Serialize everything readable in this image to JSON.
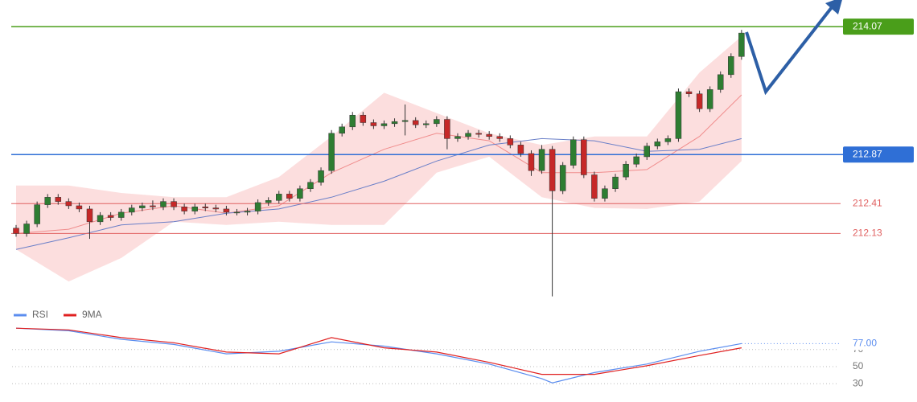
{
  "chart_data": [
    {
      "type": "candlestick",
      "open": [
        212.18,
        212.13,
        212.22,
        212.4,
        212.47,
        212.43,
        212.39,
        212.36,
        212.24,
        212.3,
        212.28,
        212.33,
        212.37,
        212.39,
        212.38,
        212.43,
        212.38,
        212.34,
        212.38,
        212.37,
        212.36,
        212.33,
        212.33,
        212.34,
        212.42,
        212.44,
        212.5,
        212.46,
        212.55,
        212.61,
        212.72,
        213.07,
        213.13,
        213.24,
        213.17,
        213.14,
        213.16,
        213.18,
        213.19,
        213.15,
        213.16,
        213.2,
        213.02,
        213.04,
        213.07,
        213.06,
        213.04,
        213.02,
        212.96,
        212.88,
        212.72,
        212.92,
        212.53,
        212.77,
        213.01,
        212.68,
        212.46,
        212.55,
        212.66,
        212.78,
        212.85,
        212.95,
        212.99,
        213.02,
        213.46,
        213.44,
        213.3,
        213.48,
        213.62,
        213.79
      ],
      "high": [
        212.21,
        212.25,
        212.43,
        212.5,
        212.5,
        212.46,
        212.42,
        212.39,
        212.33,
        212.33,
        212.36,
        212.4,
        212.42,
        212.44,
        212.46,
        212.46,
        212.41,
        212.41,
        212.41,
        212.4,
        212.39,
        212.36,
        212.37,
        212.45,
        212.47,
        212.53,
        212.53,
        212.58,
        212.64,
        212.75,
        213.1,
        213.16,
        213.27,
        213.27,
        213.2,
        213.19,
        213.21,
        213.34,
        213.22,
        213.19,
        213.23,
        213.23,
        213.07,
        213.1,
        213.1,
        213.09,
        213.07,
        213.05,
        212.99,
        212.91,
        212.96,
        212.95,
        212.8,
        213.04,
        213.04,
        212.71,
        212.58,
        212.69,
        212.81,
        212.88,
        212.98,
        213.02,
        213.05,
        213.49,
        213.49,
        213.47,
        213.51,
        213.65,
        213.82,
        214.04
      ],
      "low": [
        212.1,
        212.1,
        212.19,
        212.37,
        212.4,
        212.36,
        212.33,
        212.08,
        212.21,
        212.25,
        212.25,
        212.3,
        212.34,
        212.35,
        212.35,
        212.35,
        212.31,
        212.31,
        212.34,
        212.33,
        212.3,
        212.3,
        212.3,
        212.31,
        212.39,
        212.41,
        212.43,
        212.43,
        212.52,
        212.58,
        212.69,
        213.04,
        213.1,
        213.14,
        213.11,
        213.11,
        213.13,
        213.05,
        213.12,
        213.12,
        213.13,
        212.92,
        212.99,
        213.01,
        213.03,
        213.01,
        212.99,
        212.93,
        212.85,
        212.67,
        212.69,
        211.54,
        212.5,
        212.74,
        212.65,
        212.43,
        212.43,
        212.52,
        212.63,
        212.75,
        212.82,
        212.92,
        212.96,
        212.99,
        213.41,
        213.27,
        213.27,
        213.45,
        213.59,
        213.76
      ],
      "close": [
        212.13,
        212.22,
        212.4,
        212.47,
        212.43,
        212.39,
        212.36,
        212.24,
        212.3,
        212.28,
        212.33,
        212.37,
        212.39,
        212.38,
        212.43,
        212.38,
        212.34,
        212.38,
        212.37,
        212.36,
        212.33,
        212.33,
        212.34,
        212.42,
        212.44,
        212.5,
        212.46,
        212.55,
        212.61,
        212.72,
        213.07,
        213.13,
        213.24,
        213.17,
        213.14,
        213.16,
        213.18,
        213.19,
        213.15,
        213.16,
        213.2,
        213.02,
        213.04,
        213.07,
        213.06,
        213.04,
        213.02,
        212.96,
        212.88,
        212.72,
        212.92,
        212.53,
        212.77,
        213.01,
        212.68,
        212.46,
        212.55,
        212.66,
        212.78,
        212.85,
        212.95,
        212.99,
        213.02,
        213.46,
        213.44,
        213.3,
        213.48,
        213.62,
        213.79,
        214.01
      ],
      "up_color": "#2e7d32",
      "down_color": "#c62828",
      "band": {
        "x": [
          0,
          5,
          10,
          15,
          20,
          25,
          30,
          35,
          40,
          45,
          50,
          55,
          60,
          65,
          69
        ],
        "upper": [
          212.58,
          212.58,
          212.51,
          212.47,
          212.47,
          212.66,
          213.04,
          213.45,
          213.26,
          213.07,
          212.96,
          213.04,
          213.04,
          213.64,
          213.98
        ],
        "lower": [
          211.98,
          211.68,
          211.9,
          212.24,
          212.21,
          212.24,
          212.21,
          212.21,
          212.7,
          212.85,
          212.47,
          212.37,
          212.36,
          212.43,
          212.81
        ],
        "color": "#fbd3d3"
      },
      "lines": [
        {
          "x": [
            0,
            5,
            10,
            15,
            20,
            25,
            30,
            35,
            40,
            45,
            50,
            55,
            60,
            65,
            69
          ],
          "values": [
            212.13,
            212.17,
            212.32,
            212.39,
            212.32,
            212.39,
            212.7,
            212.92,
            213.07,
            213.0,
            212.7,
            212.7,
            212.73,
            213.04,
            213.43
          ],
          "color": "#f08c8c"
        },
        {
          "x": [
            0,
            5,
            10,
            15,
            20,
            25,
            30,
            35,
            40,
            45,
            50,
            55,
            60,
            65,
            69
          ],
          "values": [
            211.98,
            212.09,
            212.21,
            212.24,
            212.32,
            212.36,
            212.47,
            212.62,
            212.81,
            212.96,
            213.02,
            213.0,
            212.9,
            212.92,
            213.02
          ],
          "color": "#6a7fc8"
        }
      ],
      "levels": [
        214.07,
        212.87,
        212.41,
        212.13
      ],
      "level_colors": [
        "#4a9e1a",
        "#2f6fd6",
        "#e06060",
        "#e06060"
      ],
      "level_boxes": [
        true,
        true,
        false,
        false
      ],
      "xlim": [
        -1.53,
        78.42
      ],
      "ylim": [
        211.53,
        214.32
      ]
    },
    {
      "type": "line",
      "series": [
        {
          "name": "RSI",
          "color": "#5b8def",
          "x": [
            0,
            5,
            10,
            15,
            20,
            25,
            30,
            35,
            40,
            45,
            50,
            51,
            55,
            60,
            65,
            69
          ],
          "values": [
            95,
            92,
            82,
            76,
            65,
            68,
            79,
            74,
            65,
            53,
            36,
            31,
            43,
            53,
            68,
            77
          ],
          "value_labels": [
            null,
            null,
            null,
            null,
            null,
            null,
            null,
            null,
            null,
            null,
            null,
            null,
            null,
            null,
            null,
            "77.00"
          ]
        },
        {
          "name": "9MA",
          "color": "#e02020",
          "x": [
            0,
            5,
            10,
            15,
            20,
            25,
            30,
            35,
            40,
            45,
            50,
            55,
            60,
            65,
            69
          ],
          "values": [
            95,
            93,
            84,
            78,
            67,
            65,
            84,
            72,
            67,
            55,
            41,
            41,
            51,
            63,
            72
          ]
        }
      ],
      "xlim": [
        -1.53,
        78.42
      ],
      "ylim": [
        18,
        98
      ],
      "yticks": [
        30,
        50,
        70
      ],
      "grid": true
    }
  ]
}
